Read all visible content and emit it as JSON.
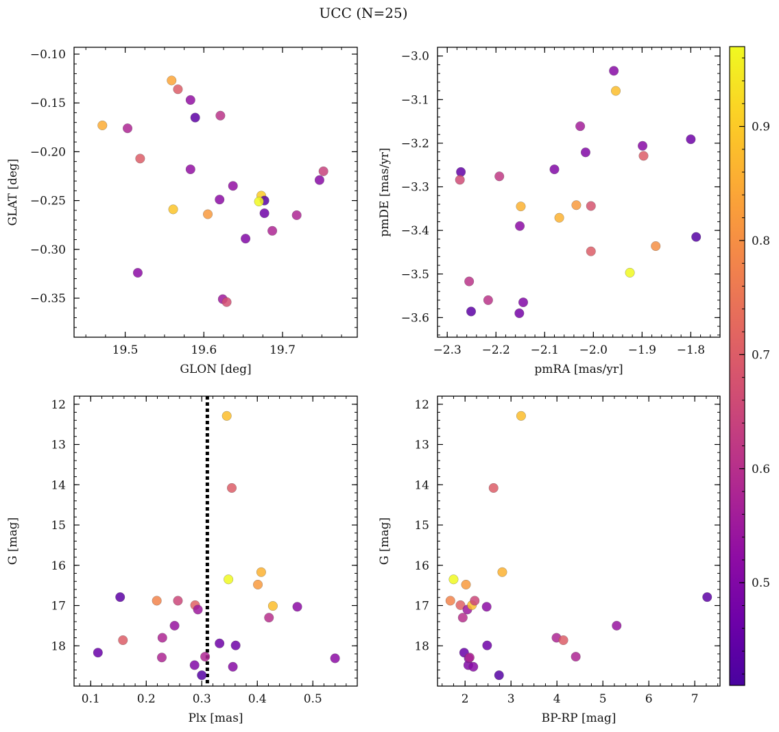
{
  "figure": {
    "title": "UCC (N=25)"
  },
  "colorbar": {
    "cmap": "plasma",
    "range": [
      0.41,
      0.97
    ],
    "ticks": [
      0.5,
      0.6,
      0.7,
      0.8,
      0.9
    ],
    "tick_labels": [
      "0.5",
      "0.6",
      "0.7",
      "0.8",
      "0.9"
    ]
  },
  "chart_data": [
    {
      "type": "scatter",
      "panel": "top-left",
      "xlabel": "GLON [deg]",
      "ylabel": "GLAT [deg]",
      "xlim": [
        19.435,
        19.795
      ],
      "ylim": [
        -0.39,
        -0.093
      ],
      "y_inverted": false,
      "xticks": [
        19.5,
        19.6,
        19.7
      ],
      "xtick_labels": [
        "19.5",
        "19.6",
        "19.7"
      ],
      "yticks": [
        -0.35,
        -0.3,
        -0.25,
        -0.2,
        -0.15,
        -0.1
      ],
      "ytick_labels": [
        "−0.35",
        "−0.30",
        "−0.25",
        "−0.20",
        "−0.15",
        "−0.10"
      ],
      "x_minor": 0.025,
      "y_minor": 0.01,
      "points": [
        {
          "x": 19.471,
          "y": -0.173,
          "c": 0.85
        },
        {
          "x": 19.503,
          "y": -0.176,
          "c": 0.58
        },
        {
          "x": 19.519,
          "y": -0.207,
          "c": 0.7
        },
        {
          "x": 19.516,
          "y": -0.324,
          "c": 0.52
        },
        {
          "x": 19.559,
          "y": -0.127,
          "c": 0.84
        },
        {
          "x": 19.567,
          "y": -0.136,
          "c": 0.7
        },
        {
          "x": 19.561,
          "y": -0.259,
          "c": 0.89
        },
        {
          "x": 19.583,
          "y": -0.147,
          "c": 0.53
        },
        {
          "x": 19.589,
          "y": -0.165,
          "c": 0.44
        },
        {
          "x": 19.583,
          "y": -0.218,
          "c": 0.53
        },
        {
          "x": 19.605,
          "y": -0.264,
          "c": 0.82
        },
        {
          "x": 19.621,
          "y": -0.163,
          "c": 0.61
        },
        {
          "x": 19.62,
          "y": -0.249,
          "c": 0.52
        },
        {
          "x": 19.624,
          "y": -0.351,
          "c": 0.55
        },
        {
          "x": 19.629,
          "y": -0.354,
          "c": 0.67
        },
        {
          "x": 19.637,
          "y": -0.235,
          "c": 0.53
        },
        {
          "x": 19.653,
          "y": -0.289,
          "c": 0.5
        },
        {
          "x": 19.673,
          "y": -0.245,
          "c": 0.9
        },
        {
          "x": 19.677,
          "y": -0.25,
          "c": 0.43
        },
        {
          "x": 19.67,
          "y": -0.251,
          "c": 0.97
        },
        {
          "x": 19.677,
          "y": -0.263,
          "c": 0.47
        },
        {
          "x": 19.687,
          "y": -0.281,
          "c": 0.58
        },
        {
          "x": 19.718,
          "y": -0.265,
          "c": 0.58
        },
        {
          "x": 19.747,
          "y": -0.229,
          "c": 0.51
        },
        {
          "x": 19.752,
          "y": -0.22,
          "c": 0.64
        }
      ]
    },
    {
      "type": "scatter",
      "panel": "top-right",
      "xlabel": "pmRA [mas/yr]",
      "ylabel": "pmDE [mas/yr]",
      "xlim": [
        -2.32,
        -1.74
      ],
      "ylim": [
        -3.645,
        -2.98
      ],
      "y_inverted": false,
      "xticks": [
        -2.3,
        -2.2,
        -2.1,
        -2.0,
        -1.9,
        -1.8
      ],
      "xtick_labels": [
        "−2.3",
        "−2.2",
        "−2.1",
        "−2.0",
        "−1.9",
        "−1.8"
      ],
      "yticks": [
        -3.6,
        -3.5,
        -3.4,
        -3.3,
        -3.2,
        -3.1,
        -3.0
      ],
      "ytick_labels": [
        "−3.6",
        "−3.5",
        "−3.4",
        "−3.3",
        "−3.2",
        "−3.1",
        "−3.0"
      ],
      "x_minor": 0.02,
      "y_minor": 0.02,
      "points": [
        {
          "x": -2.272,
          "y": -3.266,
          "c": 0.45
        },
        {
          "x": -2.274,
          "y": -3.284,
          "c": 0.66
        },
        {
          "x": -2.255,
          "y": -3.517,
          "c": 0.61
        },
        {
          "x": -2.251,
          "y": -3.586,
          "c": 0.44
        },
        {
          "x": -2.216,
          "y": -3.56,
          "c": 0.61
        },
        {
          "x": -2.193,
          "y": -3.276,
          "c": 0.62
        },
        {
          "x": -2.149,
          "y": -3.345,
          "c": 0.86
        },
        {
          "x": -2.151,
          "y": -3.39,
          "c": 0.52
        },
        {
          "x": -2.144,
          "y": -3.565,
          "c": 0.5
        },
        {
          "x": -2.152,
          "y": -3.59,
          "c": 0.48
        },
        {
          "x": -2.08,
          "y": -3.26,
          "c": 0.5
        },
        {
          "x": -2.07,
          "y": -3.371,
          "c": 0.86
        },
        {
          "x": -2.035,
          "y": -3.342,
          "c": 0.82
        },
        {
          "x": -2.027,
          "y": -3.161,
          "c": 0.56
        },
        {
          "x": -2.016,
          "y": -3.221,
          "c": 0.5
        },
        {
          "x": -2.005,
          "y": -3.344,
          "c": 0.68
        },
        {
          "x": -2.005,
          "y": -3.448,
          "c": 0.7
        },
        {
          "x": -1.958,
          "y": -3.034,
          "c": 0.51
        },
        {
          "x": -1.954,
          "y": -3.08,
          "c": 0.88
        },
        {
          "x": -1.925,
          "y": -3.497,
          "c": 0.97
        },
        {
          "x": -1.899,
          "y": -3.206,
          "c": 0.51
        },
        {
          "x": -1.897,
          "y": -3.229,
          "c": 0.7
        },
        {
          "x": -1.872,
          "y": -3.436,
          "c": 0.8
        },
        {
          "x": -1.8,
          "y": -3.191,
          "c": 0.47
        },
        {
          "x": -1.789,
          "y": -3.415,
          "c": 0.43
        }
      ]
    },
    {
      "type": "scatter",
      "panel": "bottom-left",
      "xlabel": "Plx [mas]",
      "ylabel": "G [mag]",
      "xlim": [
        0.07,
        0.58
      ],
      "ylim": [
        11.8,
        19.0
      ],
      "y_inverted": true,
      "xticks": [
        0.1,
        0.2,
        0.3,
        0.4,
        0.5
      ],
      "xtick_labels": [
        "0.1",
        "0.2",
        "0.3",
        "0.4",
        "0.5"
      ],
      "yticks": [
        12,
        13,
        14,
        15,
        16,
        17,
        18
      ],
      "ytick_labels": [
        "12",
        "13",
        "14",
        "15",
        "16",
        "17",
        "18"
      ],
      "x_minor": 0.02,
      "y_minor": 0.2,
      "vline": {
        "x": 0.31,
        "style": "dotted"
      },
      "points": [
        {
          "x": 0.113,
          "y": 18.17,
          "c": 0.46
        },
        {
          "x": 0.153,
          "y": 16.79,
          "c": 0.44
        },
        {
          "x": 0.158,
          "y": 17.86,
          "c": 0.7
        },
        {
          "x": 0.219,
          "y": 16.88,
          "c": 0.78
        },
        {
          "x": 0.228,
          "y": 18.29,
          "c": 0.58
        },
        {
          "x": 0.229,
          "y": 17.8,
          "c": 0.58
        },
        {
          "x": 0.251,
          "y": 17.5,
          "c": 0.54
        },
        {
          "x": 0.257,
          "y": 16.88,
          "c": 0.65
        },
        {
          "x": 0.288,
          "y": 16.99,
          "c": 0.71
        },
        {
          "x": 0.287,
          "y": 18.48,
          "c": 0.5
        },
        {
          "x": 0.293,
          "y": 17.1,
          "c": 0.55
        },
        {
          "x": 0.3,
          "y": 18.73,
          "c": 0.43
        },
        {
          "x": 0.306,
          "y": 18.27,
          "c": 0.58
        },
        {
          "x": 0.332,
          "y": 17.94,
          "c": 0.47
        },
        {
          "x": 0.345,
          "y": 12.29,
          "c": 0.88
        },
        {
          "x": 0.348,
          "y": 16.35,
          "c": 0.97
        },
        {
          "x": 0.354,
          "y": 14.08,
          "c": 0.7
        },
        {
          "x": 0.356,
          "y": 18.52,
          "c": 0.51
        },
        {
          "x": 0.361,
          "y": 17.99,
          "c": 0.47
        },
        {
          "x": 0.401,
          "y": 16.48,
          "c": 0.82
        },
        {
          "x": 0.407,
          "y": 16.17,
          "c": 0.86
        },
        {
          "x": 0.421,
          "y": 17.3,
          "c": 0.6
        },
        {
          "x": 0.428,
          "y": 17.01,
          "c": 0.88
        },
        {
          "x": 0.472,
          "y": 17.03,
          "c": 0.52
        },
        {
          "x": 0.54,
          "y": 18.31,
          "c": 0.52
        }
      ]
    },
    {
      "type": "scatter",
      "panel": "bottom-right",
      "xlabel": "BP-RP [mag]",
      "ylabel": "G [mag]",
      "xlim": [
        1.4,
        7.55
      ],
      "ylim": [
        11.8,
        19.0
      ],
      "y_inverted": true,
      "xticks": [
        2,
        3,
        4,
        5,
        6,
        7
      ],
      "xtick_labels": [
        "2",
        "3",
        "4",
        "5",
        "6",
        "7"
      ],
      "yticks": [
        12,
        13,
        14,
        15,
        16,
        17,
        18
      ],
      "ytick_labels": [
        "12",
        "13",
        "14",
        "15",
        "16",
        "17",
        "18"
      ],
      "x_minor": 0.25,
      "y_minor": 0.2,
      "points": [
        {
          "x": 1.68,
          "y": 16.88,
          "c": 0.78
        },
        {
          "x": 1.75,
          "y": 16.35,
          "c": 0.97
        },
        {
          "x": 1.9,
          "y": 16.99,
          "c": 0.71
        },
        {
          "x": 1.95,
          "y": 17.3,
          "c": 0.6
        },
        {
          "x": 1.98,
          "y": 18.17,
          "c": 0.46
        },
        {
          "x": 2.02,
          "y": 16.48,
          "c": 0.82
        },
        {
          "x": 2.05,
          "y": 17.1,
          "c": 0.55
        },
        {
          "x": 2.07,
          "y": 18.48,
          "c": 0.5
        },
        {
          "x": 2.08,
          "y": 18.31,
          "c": 0.52
        },
        {
          "x": 2.1,
          "y": 18.29,
          "c": 0.58
        },
        {
          "x": 2.15,
          "y": 16.99,
          "c": 0.88
        },
        {
          "x": 2.18,
          "y": 18.52,
          "c": 0.51
        },
        {
          "x": 2.21,
          "y": 16.88,
          "c": 0.65
        },
        {
          "x": 2.47,
          "y": 17.03,
          "c": 0.52
        },
        {
          "x": 2.48,
          "y": 17.99,
          "c": 0.47
        },
        {
          "x": 2.62,
          "y": 14.08,
          "c": 0.7
        },
        {
          "x": 2.74,
          "y": 18.73,
          "c": 0.43
        },
        {
          "x": 2.81,
          "y": 16.17,
          "c": 0.86
        },
        {
          "x": 3.22,
          "y": 12.29,
          "c": 0.88
        },
        {
          "x": 3.99,
          "y": 17.8,
          "c": 0.58
        },
        {
          "x": 4.14,
          "y": 17.86,
          "c": 0.7
        },
        {
          "x": 4.41,
          "y": 18.27,
          "c": 0.58
        },
        {
          "x": 5.3,
          "y": 17.5,
          "c": 0.54
        },
        {
          "x": 7.27,
          "y": 16.79,
          "c": 0.44
        }
      ]
    }
  ]
}
